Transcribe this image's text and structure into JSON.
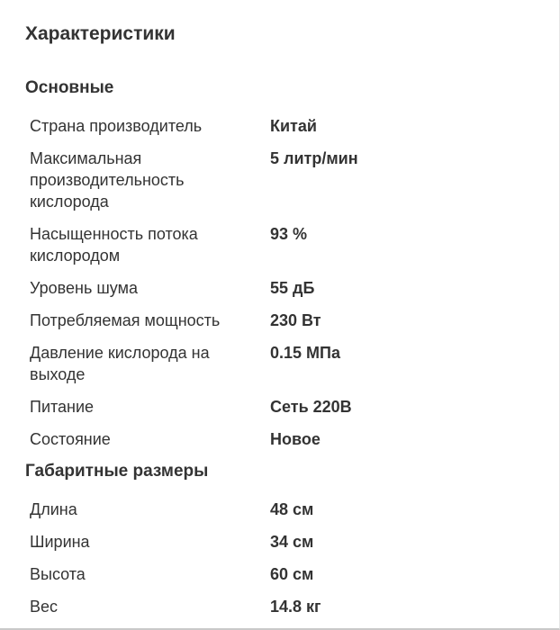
{
  "page": {
    "title": "Характеристики"
  },
  "theme": {
    "background": "#ffffff",
    "text_color": "#333333",
    "border_bottom_color": "#c9c9c9",
    "border_right_color": "#e6e6e6"
  },
  "sections": [
    {
      "title": "Основные",
      "rows": [
        {
          "label": "Страна производитель",
          "value": "Китай"
        },
        {
          "label": "Максимальная производительность кислорода",
          "value": "5 литр/мин"
        },
        {
          "label": "Насыщенность потока кислородом",
          "value": "93 %"
        },
        {
          "label": "Уровень шума",
          "value": "55 дБ"
        },
        {
          "label": "Потребляемая мощность",
          "value": "230 Вт"
        },
        {
          "label": "Давление кислорода на выходе",
          "value": "0.15 МПа"
        },
        {
          "label": "Питание",
          "value": "Сеть 220В"
        },
        {
          "label": "Состояние",
          "value": "Новое"
        }
      ]
    },
    {
      "title": "Габаритные размеры",
      "rows": [
        {
          "label": "Длина",
          "value": "48 см"
        },
        {
          "label": "Ширина",
          "value": "34 см"
        },
        {
          "label": "Высота",
          "value": "60 см"
        },
        {
          "label": "Вес",
          "value": "14.8 кг"
        }
      ]
    }
  ]
}
